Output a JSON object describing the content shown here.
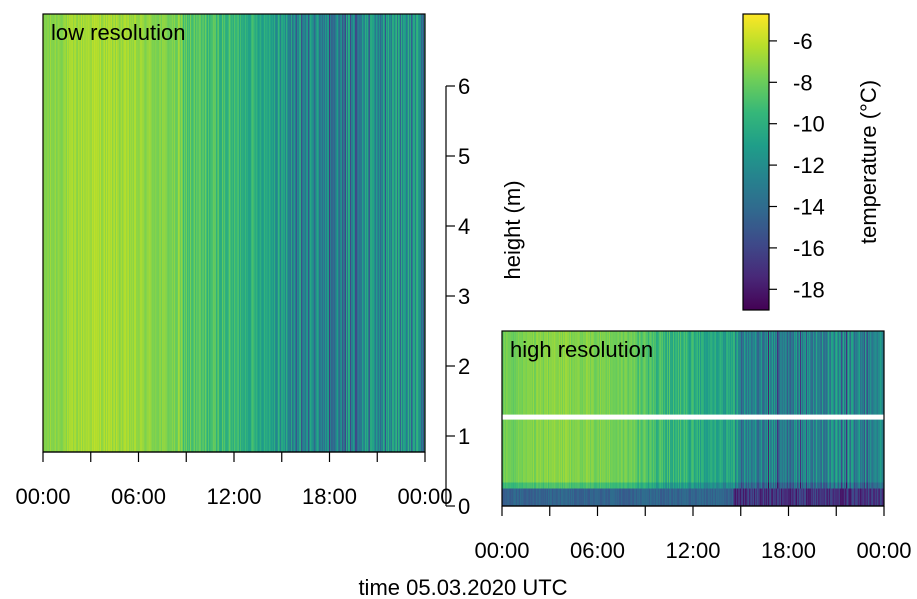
{
  "chart_data": [
    {
      "type": "heatmap",
      "title": "low resolution",
      "x": {
        "label": "",
        "ticks": [
          "00:00",
          "06:00",
          "12:00",
          "18:00",
          "00:00"
        ],
        "minor_ticks_hours": [
          3,
          9,
          15,
          21
        ],
        "range_hours": [
          0,
          24
        ]
      },
      "y": {
        "label": "",
        "range": [
          0.8,
          7.0
        ],
        "ticks": []
      },
      "color_value": "temperature (°C)",
      "mean_temperature_by_hour": [
        {
          "hour": 0,
          "value": -7.5
        },
        {
          "hour": 3,
          "value": -6.5
        },
        {
          "hour": 6,
          "value": -7.0
        },
        {
          "hour": 8.5,
          "value": -7.8
        },
        {
          "hour": 9,
          "value": -8.5
        },
        {
          "hour": 12,
          "value": -9.5
        },
        {
          "hour": 14.5,
          "value": -10.5
        },
        {
          "hour": 15.5,
          "value": -12.0
        },
        {
          "hour": 18,
          "value": -12.5
        },
        {
          "hour": 21,
          "value": -11.5
        },
        {
          "hour": 24,
          "value": -11.5
        }
      ]
    },
    {
      "type": "heatmap",
      "title": "high resolution",
      "x": {
        "label": "",
        "ticks": [
          "00:00",
          "06:00",
          "12:00",
          "18:00",
          "00:00"
        ],
        "minor_ticks_hours": [
          3,
          9,
          15,
          21
        ],
        "range_hours": [
          0,
          24
        ]
      },
      "y": {
        "label": "height (m)",
        "range": [
          0,
          6.8
        ],
        "ticks": [
          0,
          1,
          2,
          3,
          4,
          5,
          6
        ]
      },
      "white_line_height_m": 1.27,
      "surface_layer_height_m": [
        0,
        0.25
      ],
      "mean_temperature_by_hour": [
        {
          "hour": 0,
          "value": -8.0
        },
        {
          "hour": 3,
          "value": -7.3
        },
        {
          "hour": 6,
          "value": -7.5
        },
        {
          "hour": 8.5,
          "value": -8.0
        },
        {
          "hour": 9,
          "value": -9.0
        },
        {
          "hour": 12,
          "value": -10.0
        },
        {
          "hour": 14.5,
          "value": -11.0
        },
        {
          "hour": 15.5,
          "value": -12.5
        },
        {
          "hour": 18,
          "value": -13.0
        },
        {
          "hour": 21,
          "value": -12.0
        },
        {
          "hour": 24,
          "value": -12.0
        }
      ]
    }
  ],
  "colorbar": {
    "label": "temperature (°C)",
    "range": [
      -19,
      -4.7
    ],
    "ticks": [
      -6,
      -8,
      -10,
      -12,
      -14,
      -16,
      -18
    ],
    "colormap": "viridis"
  },
  "shared_x_label": "time 05.03.2020 UTC"
}
